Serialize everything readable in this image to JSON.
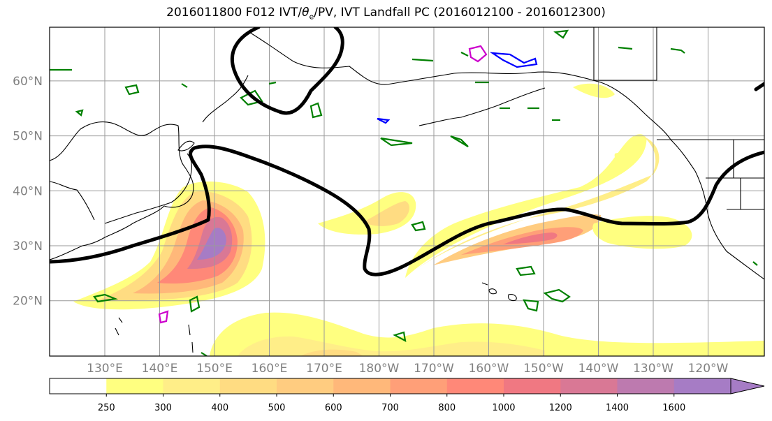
{
  "title_main": "2016011800 F012 IVT/",
  "title_theta": "θ",
  "title_sub": "e",
  "title_rest": "/PV, IVT Landfall PC (2016012100 - 2016012300)",
  "lat_labels": [
    {
      "text": "60°N",
      "lat": 60
    },
    {
      "text": "50°N",
      "lat": 50
    },
    {
      "text": "40°N",
      "lat": 40
    },
    {
      "text": "30°N",
      "lat": 30
    },
    {
      "text": "20°N",
      "lat": 20
    }
  ],
  "lon_labels": [
    {
      "text": "130°E",
      "lon": 130
    },
    {
      "text": "140°E",
      "lon": 140
    },
    {
      "text": "150°E",
      "lon": 150
    },
    {
      "text": "160°E",
      "lon": 160
    },
    {
      "text": "170°E",
      "lon": 170
    },
    {
      "text": "180°W",
      "lon": 180
    },
    {
      "text": "170°W",
      "lon": 190
    },
    {
      "text": "160°W",
      "lon": 200
    },
    {
      "text": "150°W",
      "lon": 210
    },
    {
      "text": "140°W",
      "lon": 220
    },
    {
      "text": "130°W",
      "lon": 230
    },
    {
      "text": "120°W",
      "lon": 240
    }
  ],
  "colorbar": {
    "levels": [
      "250",
      "300",
      "400",
      "500",
      "600",
      "700",
      "800",
      "1000",
      "1200",
      "1400",
      "1600"
    ],
    "colors": [
      "#ffffff",
      "#ffff80",
      "#ffee88",
      "#ffdc82",
      "#ffcc80",
      "#ffb87a",
      "#ff9f78",
      "#ff8878",
      "#f07882",
      "#d97895",
      "#bd7aaf",
      "#a67cc5"
    ]
  }
}
